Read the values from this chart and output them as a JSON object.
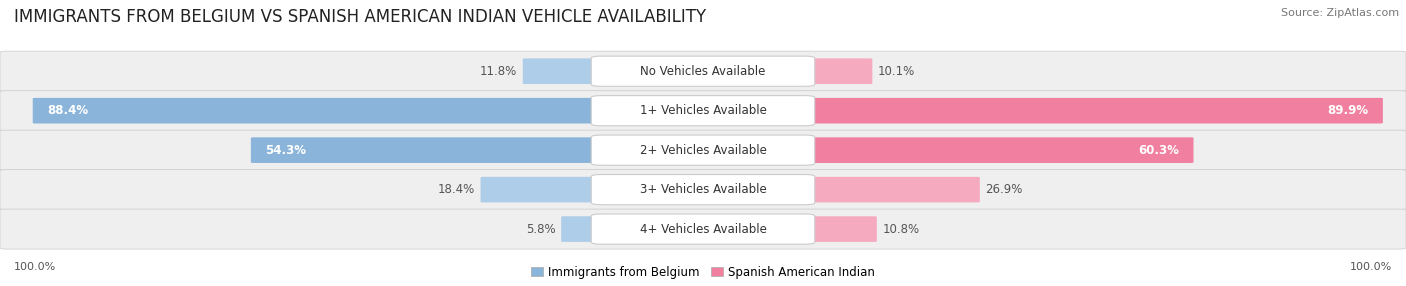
{
  "title": "IMMIGRANTS FROM BELGIUM VS SPANISH AMERICAN INDIAN VEHICLE AVAILABILITY",
  "source": "Source: ZipAtlas.com",
  "categories": [
    "No Vehicles Available",
    "1+ Vehicles Available",
    "2+ Vehicles Available",
    "3+ Vehicles Available",
    "4+ Vehicles Available"
  ],
  "belgium_values": [
    11.8,
    88.4,
    54.3,
    18.4,
    5.8
  ],
  "spanish_values": [
    10.1,
    89.9,
    60.3,
    26.9,
    10.8
  ],
  "max_value": 100.0,
  "belgium_color": "#8ab4d9",
  "spanish_color": "#f07fa0",
  "belgium_color_light": "#aecde8",
  "spanish_color_light": "#f5aabf",
  "belgium_label": "Immigrants from Belgium",
  "spanish_label": "Spanish American Indian",
  "bg_color": "#ffffff",
  "row_bg_color": "#efefef",
  "title_fontsize": 12,
  "label_fontsize": 8.5,
  "value_fontsize": 8.5,
  "tick_fontsize": 8,
  "footer_label": "100.0%"
}
